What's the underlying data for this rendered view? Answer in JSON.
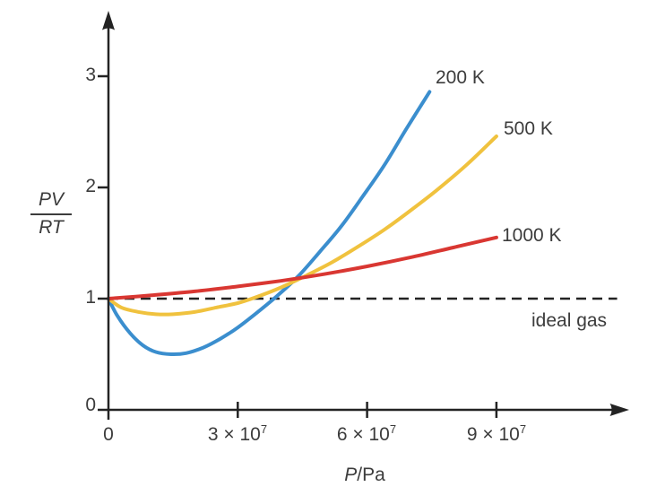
{
  "figure": {
    "background": "#ffffff",
    "text_color": "#3c3c3c",
    "axis_color": "#232323"
  },
  "chart_data": {
    "type": "line",
    "title": "",
    "xlabel": "P/Pa",
    "xlabel_symbol": "P",
    "xlabel_rest": "/Pa",
    "ylabel": "PV/RT",
    "ylabel_numerator": "PV",
    "ylabel_denominator": "RT",
    "xlim_pa": [
      0,
      120000000
    ],
    "ylim": [
      0,
      3.5
    ],
    "grid": false,
    "legend_position": "inline-labels",
    "x_tick_values_pa": [
      0,
      30000000,
      60000000,
      90000000
    ],
    "x_tick_labels": [
      "0",
      "3 × 10⁷",
      "6 × 10⁷",
      "9 × 10⁷"
    ],
    "x_ticks": [
      {
        "base": "0",
        "exp": ""
      },
      {
        "base": "3 × 10",
        "exp": "7"
      },
      {
        "base": "6 × 10",
        "exp": "7"
      },
      {
        "base": "9 × 10",
        "exp": "7"
      }
    ],
    "y_tick_values": [
      0,
      1,
      2,
      3
    ],
    "y_tick_labels": [
      "0",
      "1",
      "2",
      "3"
    ],
    "series": [
      {
        "name": "200 K",
        "color": "#3b8ece",
        "points_p1e7_z": [
          [
            0,
            1.0
          ],
          [
            0.2,
            0.85
          ],
          [
            0.5,
            0.69
          ],
          [
            0.8,
            0.58
          ],
          [
            1.1,
            0.52
          ],
          [
            1.45,
            0.5
          ],
          [
            1.8,
            0.51
          ],
          [
            2.2,
            0.56
          ],
          [
            2.6,
            0.64
          ],
          [
            3.0,
            0.74
          ],
          [
            3.4,
            0.86
          ],
          [
            3.9,
            1.02
          ],
          [
            4.4,
            1.2
          ],
          [
            4.9,
            1.42
          ],
          [
            5.4,
            1.65
          ],
          [
            5.9,
            1.92
          ],
          [
            6.4,
            2.2
          ],
          [
            6.9,
            2.52
          ],
          [
            7.45,
            2.86
          ]
        ]
      },
      {
        "name": "500 K",
        "color": "#f0c23e",
        "points_p1e7_z": [
          [
            0,
            1.0
          ],
          [
            0.3,
            0.92
          ],
          [
            0.7,
            0.88
          ],
          [
            1.1,
            0.86
          ],
          [
            1.5,
            0.86
          ],
          [
            2.0,
            0.88
          ],
          [
            2.5,
            0.92
          ],
          [
            3.0,
            0.96
          ],
          [
            3.4,
            1.01
          ],
          [
            4.0,
            1.1
          ],
          [
            4.6,
            1.21
          ],
          [
            5.2,
            1.33
          ],
          [
            5.8,
            1.47
          ],
          [
            6.4,
            1.62
          ],
          [
            7.0,
            1.79
          ],
          [
            7.6,
            1.97
          ],
          [
            8.3,
            2.2
          ],
          [
            9.0,
            2.46
          ]
        ]
      },
      {
        "name": "1000 K",
        "color": "#d93732",
        "points_p1e7_z": [
          [
            0,
            1.0
          ],
          [
            1.0,
            1.03
          ],
          [
            2.0,
            1.065
          ],
          [
            3.0,
            1.11
          ],
          [
            4.0,
            1.16
          ],
          [
            5.0,
            1.22
          ],
          [
            6.0,
            1.29
          ],
          [
            7.0,
            1.37
          ],
          [
            8.0,
            1.46
          ],
          [
            9.0,
            1.55
          ]
        ]
      }
    ],
    "ideal_gas": {
      "label": "ideal gas",
      "z": 1,
      "style": "dashed",
      "color": "#232323",
      "x_range_p1e7": [
        0,
        11.8
      ]
    }
  }
}
